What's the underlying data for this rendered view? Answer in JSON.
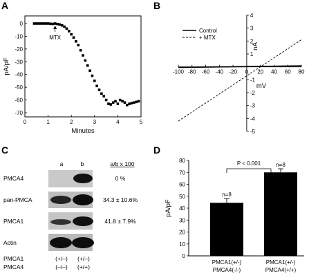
{
  "panels": {
    "A": {
      "letter": "A",
      "annotation": "MTX",
      "chart_data": {
        "type": "scatter",
        "xlabel": "Minutes",
        "ylabel": "pA/pF",
        "xlim": [
          0,
          5
        ],
        "ylim": [
          -70,
          5
        ],
        "xticks": [
          "0",
          "1",
          "2",
          "3",
          "4",
          "5"
        ],
        "yticks": [
          "0",
          "-10",
          "-20",
          "-30",
          "-40",
          "-50",
          "-60",
          "-70"
        ],
        "annotation_x": 1.3,
        "series": [
          {
            "x": [
              0.4,
              0.5,
              0.6,
              0.7,
              0.8,
              0.9,
              1.0,
              1.1,
              1.2,
              1.3,
              1.4,
              1.5,
              1.6,
              1.7,
              1.8,
              1.9,
              2.0,
              2.1,
              2.2,
              2.3,
              2.4,
              2.5,
              2.6,
              2.7,
              2.8,
              2.9,
              3.0,
              3.1,
              3.2,
              3.3,
              3.4,
              3.5,
              3.6,
              3.7,
              3.8,
              3.9,
              4.0,
              4.1,
              4.2,
              4.3,
              4.4,
              4.5,
              4.6,
              4.7,
              4.8,
              4.9
            ],
            "values": [
              0,
              0,
              0,
              0,
              0,
              0,
              0,
              -0.2,
              -0.3,
              0,
              -0.4,
              -0.8,
              -1.5,
              -2.5,
              -4,
              -6,
              -8.5,
              -11,
              -14,
              -17,
              -21,
              -25,
              -29,
              -33,
              -37,
              -41,
              -45,
              -49,
              -52,
              -55,
              -57,
              -60,
              -63,
              -63.5,
              -62,
              -61,
              -63,
              -60,
              -61,
              -62,
              -64,
              -63,
              -62.5,
              -62,
              -61.5,
              -61
            ]
          }
        ]
      }
    },
    "B": {
      "letter": "B",
      "chart_data": {
        "type": "line",
        "xlabel": "mV",
        "ylabel": "nA",
        "xlim": [
          -100,
          80
        ],
        "ylim": [
          -5,
          4
        ],
        "xticks": [
          "-100",
          "-80",
          "-60",
          "-40",
          "-20",
          "0",
          "20",
          "40",
          "60",
          "80"
        ],
        "yticks": [
          "4",
          "3",
          "2",
          "1",
          "-1",
          "-2",
          "-3",
          "-4",
          "-5"
        ],
        "legend_position": "top-left",
        "series": [
          {
            "name": "Control",
            "style": "solid",
            "x": [
              -100,
              80
            ],
            "values": [
              -0.05,
              0.08
            ]
          },
          {
            "name": "+ MTX",
            "style": "dashed",
            "x": [
              -100,
              80
            ],
            "values": [
              -4.2,
              2.1
            ]
          }
        ]
      }
    },
    "C": {
      "letter": "C",
      "lane_labels": [
        "a",
        "b"
      ],
      "ratio_header": "a/b x 100",
      "rows": [
        {
          "label": "PMCA4",
          "ratio": "0 %"
        },
        {
          "label": "pan-PMCA",
          "ratio": "34.3 ± 10.6%"
        },
        {
          "label": "PMCA1",
          "ratio": "41.8 ± 7.9%"
        },
        {
          "label": "Actin",
          "ratio": ""
        }
      ],
      "genotype_rows": [
        {
          "gene": "PMCA1",
          "a": "(+/–)",
          "b": "(+/–)"
        },
        {
          "gene": "PMCA4",
          "a": "(–/–)",
          "b": "(+/+)"
        }
      ]
    },
    "D": {
      "letter": "D",
      "significance": "P < 0.001",
      "chart_data": {
        "type": "bar",
        "ylabel": "pA/pF",
        "ylim": [
          0,
          80
        ],
        "yticks": [
          "0",
          "10",
          "20",
          "30",
          "40",
          "50",
          "60",
          "70",
          "80"
        ],
        "categories": [
          "PMCA1(+/-)\nPMCA4(-/-)",
          "PMCA1(+/-)\nPMCA4(+/+)"
        ],
        "category_lines": [
          [
            "PMCA1(+/-)",
            "PMCA4(-/-)"
          ],
          [
            "PMCA1(+/-)",
            "PMCA4(+/+)"
          ]
        ],
        "values": [
          44.5,
          70
        ],
        "errors": [
          3.5,
          3
        ],
        "n_labels": [
          "n=8",
          "n=8"
        ]
      }
    }
  }
}
